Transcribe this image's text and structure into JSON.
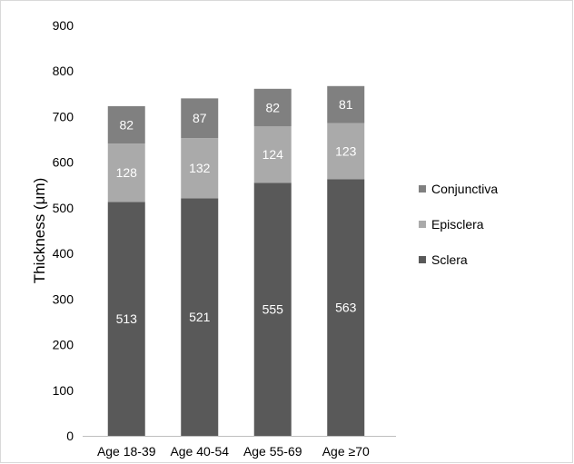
{
  "chart_data": {
    "type": "bar",
    "stacked": true,
    "categories": [
      "Age 18-39",
      "Age 40-54",
      "Age 55-69",
      "Age ≥70"
    ],
    "series": [
      {
        "name": "Sclera",
        "values": [
          513,
          521,
          555,
          563
        ],
        "color": "#595959"
      },
      {
        "name": "Episclera",
        "values": [
          128,
          132,
          124,
          123
        ],
        "color": "#aaaaaa"
      },
      {
        "name": "Conjunctiva",
        "values": [
          82,
          87,
          82,
          81
        ],
        "color": "#808080"
      }
    ],
    "title": "",
    "xlabel": "",
    "ylabel": "Thickness (μm)",
    "ylim": [
      0,
      900
    ],
    "yticks": [
      0,
      100,
      200,
      300,
      400,
      500,
      600,
      700,
      800,
      900
    ],
    "grid": false,
    "legend": {
      "position": "right",
      "order": [
        "Conjunctiva",
        "Episclera",
        "Sclera"
      ]
    },
    "data_labels": true,
    "label_color": "#ffffff",
    "axis_color": "#bfbfbf"
  }
}
